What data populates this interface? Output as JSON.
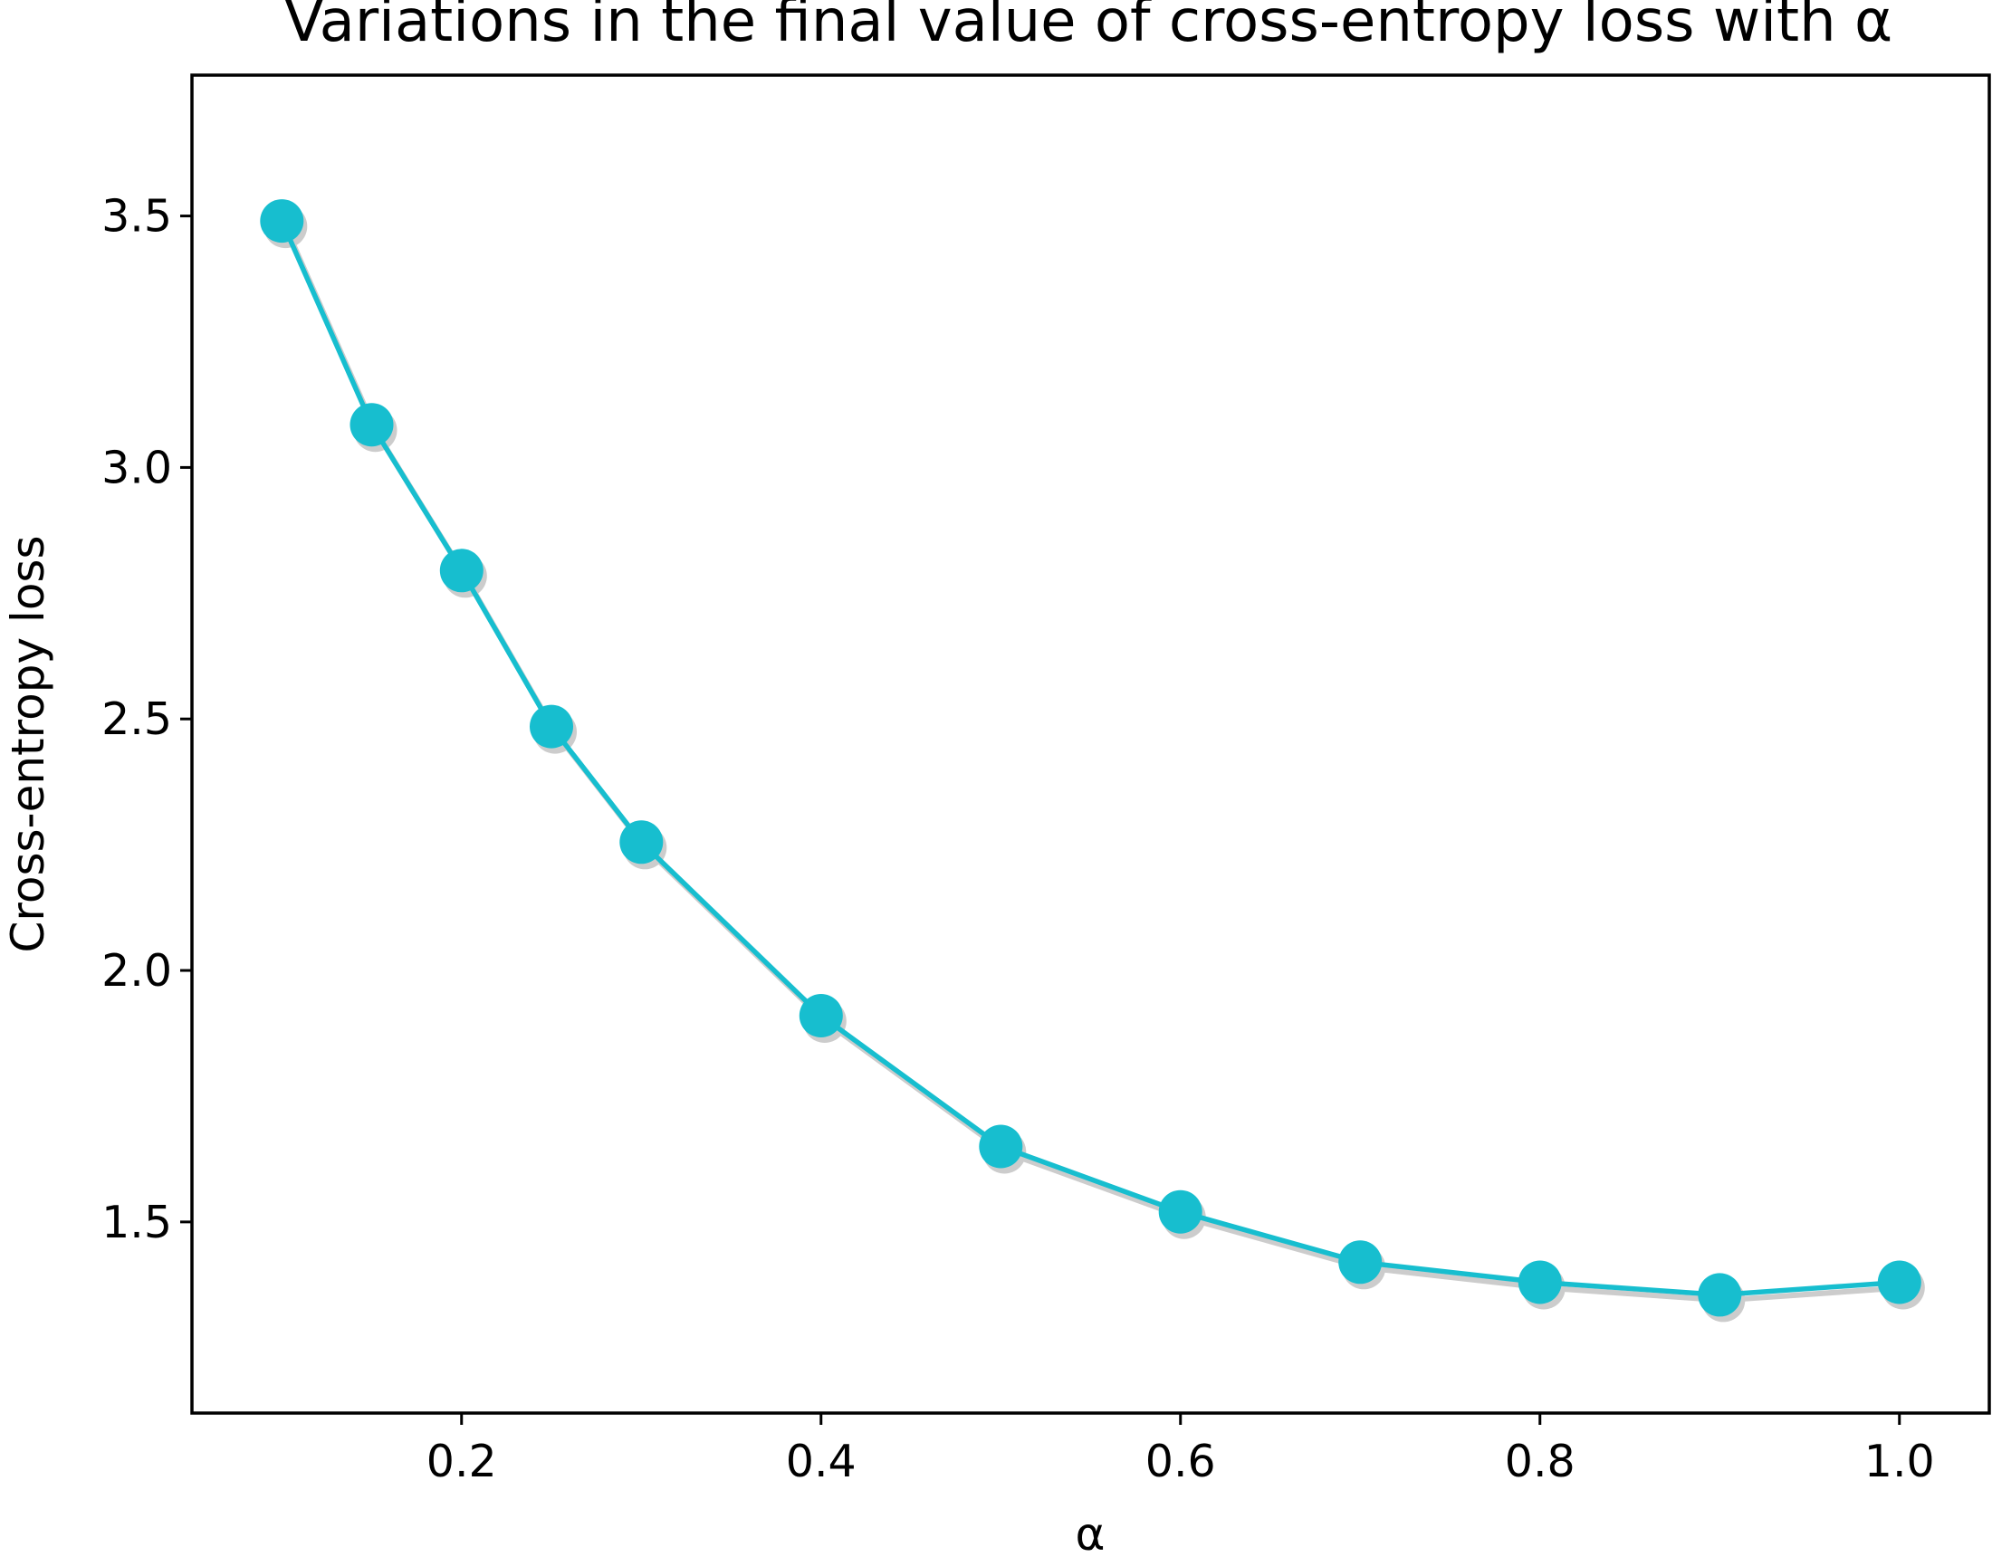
{
  "chart_data": {
    "type": "line",
    "title": "Variations in the final value of cross-entropy loss with α",
    "xlabel": "α",
    "ylabel": "Cross-entropy loss",
    "x": [
      0.1,
      0.15,
      0.2,
      0.25,
      0.3,
      0.4,
      0.5,
      0.6,
      0.7,
      0.8,
      0.9,
      1.0
    ],
    "series": [
      {
        "values": [
          3.49,
          3.085,
          2.795,
          2.485,
          2.255,
          1.91,
          1.65,
          1.52,
          1.42,
          1.38,
          1.355,
          1.38
        ],
        "color": "#17becf",
        "marker": "circle",
        "shadow_color": "#cccccc"
      }
    ],
    "xlim": [
      0.05,
      1.05
    ],
    "ylim": [
      1.12,
      3.78
    ],
    "xticks": [
      "0.2",
      "0.4",
      "0.6",
      "0.8",
      "1.0"
    ],
    "yticks": [
      "1.5",
      "2.0",
      "2.5",
      "3.0",
      "3.5"
    ],
    "grid": false,
    "legend": "none"
  }
}
